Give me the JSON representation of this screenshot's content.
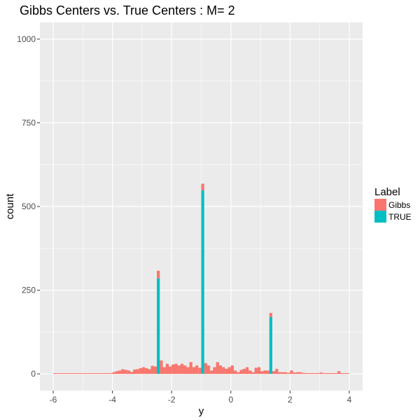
{
  "chart_data": {
    "type": "bar",
    "title": "Gibbs Centers vs. True Centers : M= 2",
    "xlabel": "y",
    "ylabel": "count",
    "xlim": [
      -6.45,
      4.45
    ],
    "ylim": [
      -50,
      1050
    ],
    "x_ticks": [
      -6,
      -4,
      -2,
      0,
      2,
      4
    ],
    "x_tick_labels": [
      "-6",
      "-4",
      "-2",
      "0",
      "2",
      "4"
    ],
    "y_ticks": [
      0,
      250,
      500,
      750,
      1000
    ],
    "y_tick_labels": [
      "0",
      "250",
      "500",
      "750",
      "1000"
    ],
    "grid": true,
    "stacked": true,
    "bin_width": 0.1,
    "legend": {
      "title": "Label",
      "placement": "right",
      "entries": [
        {
          "name": "Gibbs",
          "color": "#F8766D"
        },
        {
          "name": "TRUE",
          "color": "#00BFC4"
        }
      ]
    },
    "series": [
      {
        "name": "Gibbs",
        "color": "#F8766D",
        "x": [
          -5.95,
          -5.0,
          -4.0,
          -3.95,
          -3.85,
          -3.75,
          -3.65,
          -3.55,
          -3.45,
          -3.35,
          -3.25,
          -3.15,
          -3.05,
          -2.95,
          -2.85,
          -2.75,
          -2.65,
          -2.55,
          -2.45,
          -2.35,
          -2.25,
          -2.15,
          -2.05,
          -1.95,
          -1.85,
          -1.75,
          -1.65,
          -1.55,
          -1.45,
          -1.35,
          -1.25,
          -1.15,
          -1.05,
          -0.95,
          -0.85,
          -0.75,
          -0.65,
          -0.55,
          -0.45,
          -0.35,
          -0.25,
          -0.15,
          -0.05,
          0.05,
          0.15,
          0.25,
          0.35,
          0.45,
          0.55,
          0.65,
          0.75,
          0.85,
          0.95,
          1.05,
          1.15,
          1.25,
          1.35,
          1.45,
          1.55,
          1.65,
          1.75,
          1.85,
          1.95,
          2.05,
          2.15,
          2.25,
          2.35,
          2.45,
          2.55,
          2.65,
          2.75,
          2.85,
          2.95,
          3.05,
          3.15,
          3.25,
          3.35,
          3.45,
          3.55,
          3.65,
          3.75,
          3.85,
          3.95
        ],
        "values": [
          1,
          1,
          1,
          5,
          8,
          10,
          14,
          12,
          10,
          6,
          13,
          14,
          17,
          20,
          17,
          14,
          24,
          22,
          23,
          40,
          20,
          30,
          22,
          28,
          30,
          25,
          30,
          25,
          20,
          35,
          20,
          25,
          18,
          20,
          32,
          25,
          10,
          20,
          35,
          25,
          20,
          15,
          20,
          25,
          10,
          5,
          12,
          15,
          20,
          10,
          5,
          18,
          20,
          8,
          10,
          10,
          12,
          8,
          15,
          5,
          5,
          5,
          3,
          10,
          4,
          5,
          5,
          3,
          2,
          2,
          2,
          2,
          1,
          4,
          2,
          2,
          2,
          2,
          2,
          8,
          2,
          2,
          1
        ]
      },
      {
        "name": "TRUE",
        "color": "#00BFC4",
        "x": [
          -2.45,
          -0.95,
          1.35
        ],
        "values": [
          285,
          548,
          170
        ]
      }
    ]
  }
}
